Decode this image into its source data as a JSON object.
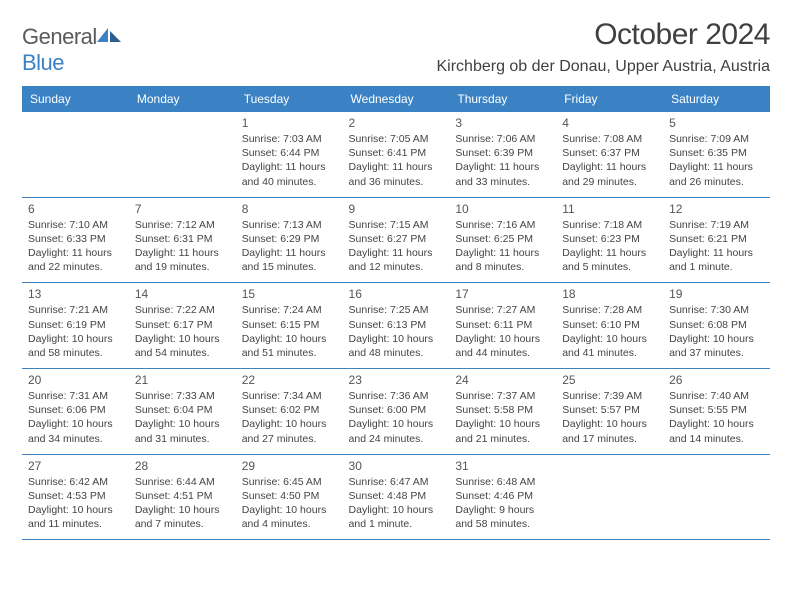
{
  "brand": {
    "word1": "General",
    "word2": "Blue"
  },
  "title": "October 2024",
  "location": "Kirchberg ob der Donau, Upper Austria, Austria",
  "colors": {
    "header_bg": "#3b82c4",
    "rule": "#3b82c4",
    "text": "#333333"
  },
  "day_headers": [
    "Sunday",
    "Monday",
    "Tuesday",
    "Wednesday",
    "Thursday",
    "Friday",
    "Saturday"
  ],
  "weeks": [
    [
      null,
      null,
      {
        "n": "1",
        "sr": "7:03 AM",
        "ss": "6:44 PM",
        "dl": "11 hours and 40 minutes."
      },
      {
        "n": "2",
        "sr": "7:05 AM",
        "ss": "6:41 PM",
        "dl": "11 hours and 36 minutes."
      },
      {
        "n": "3",
        "sr": "7:06 AM",
        "ss": "6:39 PM",
        "dl": "11 hours and 33 minutes."
      },
      {
        "n": "4",
        "sr": "7:08 AM",
        "ss": "6:37 PM",
        "dl": "11 hours and 29 minutes."
      },
      {
        "n": "5",
        "sr": "7:09 AM",
        "ss": "6:35 PM",
        "dl": "11 hours and 26 minutes."
      }
    ],
    [
      {
        "n": "6",
        "sr": "7:10 AM",
        "ss": "6:33 PM",
        "dl": "11 hours and 22 minutes."
      },
      {
        "n": "7",
        "sr": "7:12 AM",
        "ss": "6:31 PM",
        "dl": "11 hours and 19 minutes."
      },
      {
        "n": "8",
        "sr": "7:13 AM",
        "ss": "6:29 PM",
        "dl": "11 hours and 15 minutes."
      },
      {
        "n": "9",
        "sr": "7:15 AM",
        "ss": "6:27 PM",
        "dl": "11 hours and 12 minutes."
      },
      {
        "n": "10",
        "sr": "7:16 AM",
        "ss": "6:25 PM",
        "dl": "11 hours and 8 minutes."
      },
      {
        "n": "11",
        "sr": "7:18 AM",
        "ss": "6:23 PM",
        "dl": "11 hours and 5 minutes."
      },
      {
        "n": "12",
        "sr": "7:19 AM",
        "ss": "6:21 PM",
        "dl": "11 hours and 1 minute."
      }
    ],
    [
      {
        "n": "13",
        "sr": "7:21 AM",
        "ss": "6:19 PM",
        "dl": "10 hours and 58 minutes."
      },
      {
        "n": "14",
        "sr": "7:22 AM",
        "ss": "6:17 PM",
        "dl": "10 hours and 54 minutes."
      },
      {
        "n": "15",
        "sr": "7:24 AM",
        "ss": "6:15 PM",
        "dl": "10 hours and 51 minutes."
      },
      {
        "n": "16",
        "sr": "7:25 AM",
        "ss": "6:13 PM",
        "dl": "10 hours and 48 minutes."
      },
      {
        "n": "17",
        "sr": "7:27 AM",
        "ss": "6:11 PM",
        "dl": "10 hours and 44 minutes."
      },
      {
        "n": "18",
        "sr": "7:28 AM",
        "ss": "6:10 PM",
        "dl": "10 hours and 41 minutes."
      },
      {
        "n": "19",
        "sr": "7:30 AM",
        "ss": "6:08 PM",
        "dl": "10 hours and 37 minutes."
      }
    ],
    [
      {
        "n": "20",
        "sr": "7:31 AM",
        "ss": "6:06 PM",
        "dl": "10 hours and 34 minutes."
      },
      {
        "n": "21",
        "sr": "7:33 AM",
        "ss": "6:04 PM",
        "dl": "10 hours and 31 minutes."
      },
      {
        "n": "22",
        "sr": "7:34 AM",
        "ss": "6:02 PM",
        "dl": "10 hours and 27 minutes."
      },
      {
        "n": "23",
        "sr": "7:36 AM",
        "ss": "6:00 PM",
        "dl": "10 hours and 24 minutes."
      },
      {
        "n": "24",
        "sr": "7:37 AM",
        "ss": "5:58 PM",
        "dl": "10 hours and 21 minutes."
      },
      {
        "n": "25",
        "sr": "7:39 AM",
        "ss": "5:57 PM",
        "dl": "10 hours and 17 minutes."
      },
      {
        "n": "26",
        "sr": "7:40 AM",
        "ss": "5:55 PM",
        "dl": "10 hours and 14 minutes."
      }
    ],
    [
      {
        "n": "27",
        "sr": "6:42 AM",
        "ss": "4:53 PM",
        "dl": "10 hours and 11 minutes."
      },
      {
        "n": "28",
        "sr": "6:44 AM",
        "ss": "4:51 PM",
        "dl": "10 hours and 7 minutes."
      },
      {
        "n": "29",
        "sr": "6:45 AM",
        "ss": "4:50 PM",
        "dl": "10 hours and 4 minutes."
      },
      {
        "n": "30",
        "sr": "6:47 AM",
        "ss": "4:48 PM",
        "dl": "10 hours and 1 minute."
      },
      {
        "n": "31",
        "sr": "6:48 AM",
        "ss": "4:46 PM",
        "dl": "9 hours and 58 minutes."
      },
      null,
      null
    ]
  ],
  "labels": {
    "sunrise": "Sunrise: ",
    "sunset": "Sunset: ",
    "daylight": "Daylight: "
  }
}
